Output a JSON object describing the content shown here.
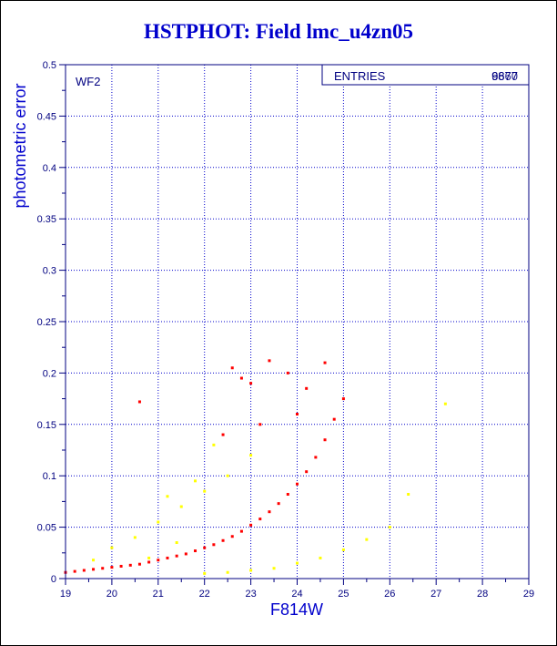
{
  "chart_data": {
    "type": "scatter",
    "title": "HSTPHOT: Field lmc_u4zn05",
    "xlabel": "F814W",
    "ylabel": "photometric error",
    "xlim": [
      19,
      29
    ],
    "ylim": [
      0,
      0.5
    ],
    "x_ticks": [
      "19",
      "20",
      "21",
      "22",
      "23",
      "24",
      "25",
      "26",
      "27",
      "28",
      "29"
    ],
    "y_ticks": [
      "0",
      "0.05",
      "0.1",
      "0.15",
      "0.2",
      "0.25",
      "0.3",
      "0.35",
      "0.4",
      "0.45",
      "0.5"
    ],
    "grid": true,
    "chip_label": "WF2",
    "stats_box": {
      "label": "ENTRIES",
      "values": [
        "9877",
        "6660"
      ]
    },
    "series": [
      {
        "color": "#ff0000",
        "points": [
          [
            19.0,
            0.006
          ],
          [
            19.2,
            0.007
          ],
          [
            19.4,
            0.008
          ],
          [
            19.6,
            0.009
          ],
          [
            19.8,
            0.01
          ],
          [
            20.0,
            0.011
          ],
          [
            20.2,
            0.012
          ],
          [
            20.4,
            0.013
          ],
          [
            20.6,
            0.014
          ],
          [
            20.8,
            0.016
          ],
          [
            21.0,
            0.018
          ],
          [
            21.2,
            0.02
          ],
          [
            21.4,
            0.022
          ],
          [
            21.6,
            0.024
          ],
          [
            21.8,
            0.027
          ],
          [
            22.0,
            0.03
          ],
          [
            22.2,
            0.033
          ],
          [
            22.4,
            0.037
          ],
          [
            22.6,
            0.041
          ],
          [
            22.8,
            0.046
          ],
          [
            23.0,
            0.052
          ],
          [
            23.2,
            0.058
          ],
          [
            23.4,
            0.065
          ],
          [
            23.6,
            0.073
          ],
          [
            23.8,
            0.082
          ],
          [
            24.0,
            0.092
          ],
          [
            24.2,
            0.104
          ],
          [
            24.4,
            0.118
          ],
          [
            24.6,
            0.135
          ],
          [
            24.8,
            0.155
          ],
          [
            25.0,
            0.175
          ],
          [
            22.6,
            0.205
          ],
          [
            22.8,
            0.195
          ],
          [
            23.0,
            0.19
          ],
          [
            23.4,
            0.212
          ],
          [
            23.8,
            0.2
          ],
          [
            24.2,
            0.185
          ],
          [
            24.6,
            0.21
          ],
          [
            24.0,
            0.16
          ],
          [
            23.2,
            0.15
          ],
          [
            22.4,
            0.14
          ],
          [
            20.6,
            0.172
          ]
        ]
      },
      {
        "color": "#ffff00",
        "points": [
          [
            20.0,
            0.03
          ],
          [
            20.5,
            0.04
          ],
          [
            21.0,
            0.055
          ],
          [
            21.5,
            0.07
          ],
          [
            22.0,
            0.085
          ],
          [
            22.5,
            0.1
          ],
          [
            23.0,
            0.12
          ],
          [
            21.2,
            0.08
          ],
          [
            21.8,
            0.095
          ],
          [
            22.2,
            0.13
          ],
          [
            22.0,
            0.005
          ],
          [
            22.5,
            0.006
          ],
          [
            23.0,
            0.008
          ],
          [
            23.5,
            0.01
          ],
          [
            24.0,
            0.015
          ],
          [
            24.5,
            0.02
          ],
          [
            25.0,
            0.028
          ],
          [
            25.5,
            0.038
          ],
          [
            26.0,
            0.05
          ],
          [
            26.4,
            0.082
          ],
          [
            27.2,
            0.17
          ],
          [
            20.8,
            0.02
          ],
          [
            21.4,
            0.035
          ],
          [
            19.6,
            0.018
          ]
        ]
      }
    ]
  }
}
